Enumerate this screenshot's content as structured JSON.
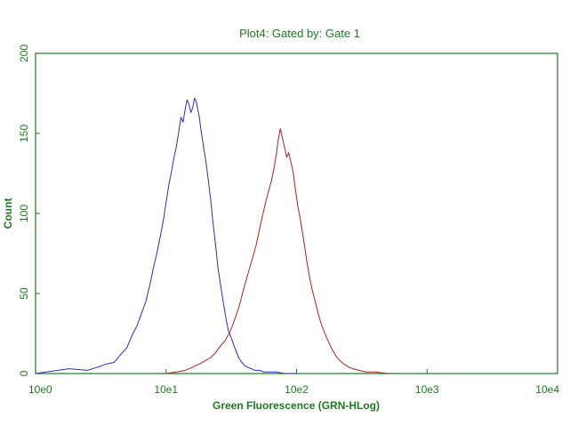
{
  "chart_data": {
    "type": "line",
    "title": "Plot4:  Gated by: Gate 1",
    "xlabel": "Green Fluorescence (GRN-HLog)",
    "ylabel": "Count",
    "x_scale": "log",
    "xlim": [
      1,
      10000
    ],
    "ylim": [
      0,
      200
    ],
    "x_tick_labels": [
      "10e0",
      "10e1",
      "10e2",
      "10e3",
      "10e4"
    ],
    "x_tick_values": [
      1,
      10,
      100,
      1000,
      10000
    ],
    "y_ticks": [
      0,
      50,
      100,
      150,
      200
    ],
    "grid": false,
    "legend": "none",
    "colors": {
      "axis": "#1f7a1f",
      "text": "#1f7a1f"
    },
    "series": [
      {
        "color": "#2a2acc",
        "x": [
          1,
          1.8,
          2.5,
          3,
          3.5,
          4,
          4.5,
          5,
          5.5,
          6,
          6.5,
          7,
          7.5,
          8,
          8.5,
          9,
          9.5,
          10,
          10.5,
          11,
          11.5,
          12,
          12.5,
          13,
          13.5,
          14,
          14.5,
          15,
          15.5,
          16,
          16.5,
          17,
          17.5,
          18,
          18.5,
          19,
          19.5,
          20,
          21,
          22,
          23,
          24,
          25,
          26,
          27,
          28,
          29,
          30,
          32,
          34,
          36,
          38,
          40,
          42,
          45,
          48,
          52,
          56,
          60,
          70,
          80,
          100
        ],
        "y": [
          0,
          3,
          2,
          4,
          6,
          7,
          12,
          16,
          24,
          30,
          38,
          45,
          55,
          66,
          75,
          85,
          95,
          107,
          118,
          126,
          135,
          142,
          151,
          160,
          157,
          165,
          171,
          168,
          163,
          166,
          172,
          170,
          165,
          160,
          152,
          146,
          140,
          135,
          122,
          108,
          93,
          80,
          66,
          57,
          48,
          40,
          33,
          27,
          21,
          15,
          10,
          7,
          5,
          4,
          3,
          2,
          2,
          1,
          1,
          1,
          0,
          0
        ]
      },
      {
        "color": "#b02020",
        "x": [
          10,
          12,
          14,
          16,
          18,
          20,
          22,
          24,
          26,
          28,
          30,
          32,
          34,
          36,
          38,
          40,
          43,
          46,
          49,
          52,
          55,
          58,
          61,
          64,
          67,
          70,
          72,
          75,
          78,
          81,
          84,
          87,
          90,
          94,
          98,
          102,
          106,
          110,
          115,
          120,
          126,
          132,
          140,
          148,
          156,
          165,
          175,
          185,
          200,
          215,
          230,
          250,
          270,
          300,
          340,
          400,
          500
        ],
        "y": [
          0,
          1,
          2,
          4,
          6,
          8,
          10,
          13,
          17,
          20,
          24,
          29,
          35,
          41,
          48,
          55,
          64,
          72,
          80,
          90,
          99,
          107,
          114,
          120,
          128,
          137,
          145,
          153,
          147,
          141,
          135,
          138,
          133,
          126,
          115,
          105,
          98,
          90,
          80,
          70,
          60,
          52,
          44,
          36,
          30,
          25,
          20,
          16,
          11,
          8,
          6,
          4,
          3,
          2,
          1,
          1,
          0
        ]
      }
    ]
  }
}
